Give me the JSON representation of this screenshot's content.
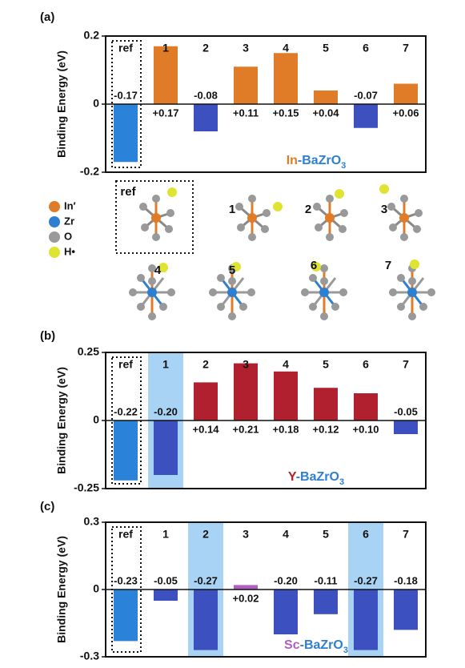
{
  "structures": {
    "legend": [
      "In′",
      "Zr",
      "O",
      "H•"
    ],
    "legend_colors": [
      "#e07b28",
      "#2f7fd0",
      "#9a9a9a",
      "#dfe332"
    ],
    "labels": [
      "ref",
      "1",
      "2",
      "3",
      "4",
      "5",
      "6",
      "7"
    ]
  },
  "chart_data": [
    {
      "type": "bar",
      "panel": "(a)",
      "y_label": "Binding Energy (eV)",
      "annotation": {
        "dopant": "In",
        "host": "-BaZrO",
        "sub": "3"
      },
      "annotation_colors": [
        "#e07b28",
        "#2f7fd0"
      ],
      "categories": [
        "ref",
        "1",
        "2",
        "3",
        "4",
        "5",
        "6",
        "7"
      ],
      "values": [
        -0.17,
        0.17,
        -0.08,
        0.11,
        0.15,
        0.04,
        -0.07,
        0.06
      ],
      "value_labels": [
        "-0.17",
        "+0.17",
        "-0.08",
        "+0.11",
        "+0.15",
        "+0.04",
        "-0.07",
        "+0.06"
      ],
      "colors": [
        "#2a83d8",
        "#e07b28",
        "#3c50c0",
        "#e07b28",
        "#e07b28",
        "#e07b28",
        "#3c50c0",
        "#e07b28"
      ],
      "highlight": [
        false,
        false,
        false,
        false,
        false,
        false,
        false,
        false
      ],
      "ylim": [
        -0.2,
        0.2
      ],
      "yticks": [
        -0.2,
        0,
        0.2
      ]
    },
    {
      "type": "bar",
      "panel": "(b)",
      "y_label": "Binding Energy (eV)",
      "annotation": {
        "dopant": "Y",
        "host": "-BaZrO",
        "sub": "3"
      },
      "annotation_colors": [
        "#b0202e",
        "#2f7fd0"
      ],
      "categories": [
        "ref",
        "1",
        "2",
        "3",
        "4",
        "5",
        "6",
        "7"
      ],
      "values": [
        -0.22,
        -0.2,
        0.14,
        0.21,
        0.18,
        0.12,
        0.1,
        -0.05
      ],
      "value_labels": [
        "-0.22",
        "-0.20",
        "+0.14",
        "+0.21",
        "+0.18",
        "+0.12",
        "+0.10",
        "-0.05"
      ],
      "colors": [
        "#2a83d8",
        "#3c50c0",
        "#b0202e",
        "#b0202e",
        "#b0202e",
        "#b0202e",
        "#b0202e",
        "#3c50c0"
      ],
      "highlight": [
        false,
        true,
        false,
        false,
        false,
        false,
        false,
        false
      ],
      "ylim": [
        -0.25,
        0.25
      ],
      "yticks": [
        -0.25,
        0,
        0.25
      ]
    },
    {
      "type": "bar",
      "panel": "(c)",
      "y_label": "Binding Energy (eV)",
      "annotation": {
        "dopant": "Sc",
        "host": "-BaZrO",
        "sub": "3"
      },
      "annotation_colors": [
        "#b05fc0",
        "#2f7fd0"
      ],
      "categories": [
        "ref",
        "1",
        "2",
        "3",
        "4",
        "5",
        "6",
        "7"
      ],
      "values": [
        -0.23,
        -0.05,
        -0.27,
        0.02,
        -0.2,
        -0.11,
        -0.27,
        -0.18
      ],
      "value_labels": [
        "-0.23",
        "-0.05",
        "-0.27",
        "+0.02",
        "-0.20",
        "-0.11",
        "-0.27",
        "-0.18"
      ],
      "colors": [
        "#2a83d8",
        "#3c50c0",
        "#3c50c0",
        "#b05fc0",
        "#3c50c0",
        "#3c50c0",
        "#3c50c0",
        "#3c50c0"
      ],
      "highlight": [
        false,
        false,
        true,
        false,
        false,
        false,
        true,
        false
      ],
      "ylim": [
        -0.3,
        0.3
      ],
      "yticks": [
        -0.3,
        0,
        0.3
      ]
    }
  ]
}
